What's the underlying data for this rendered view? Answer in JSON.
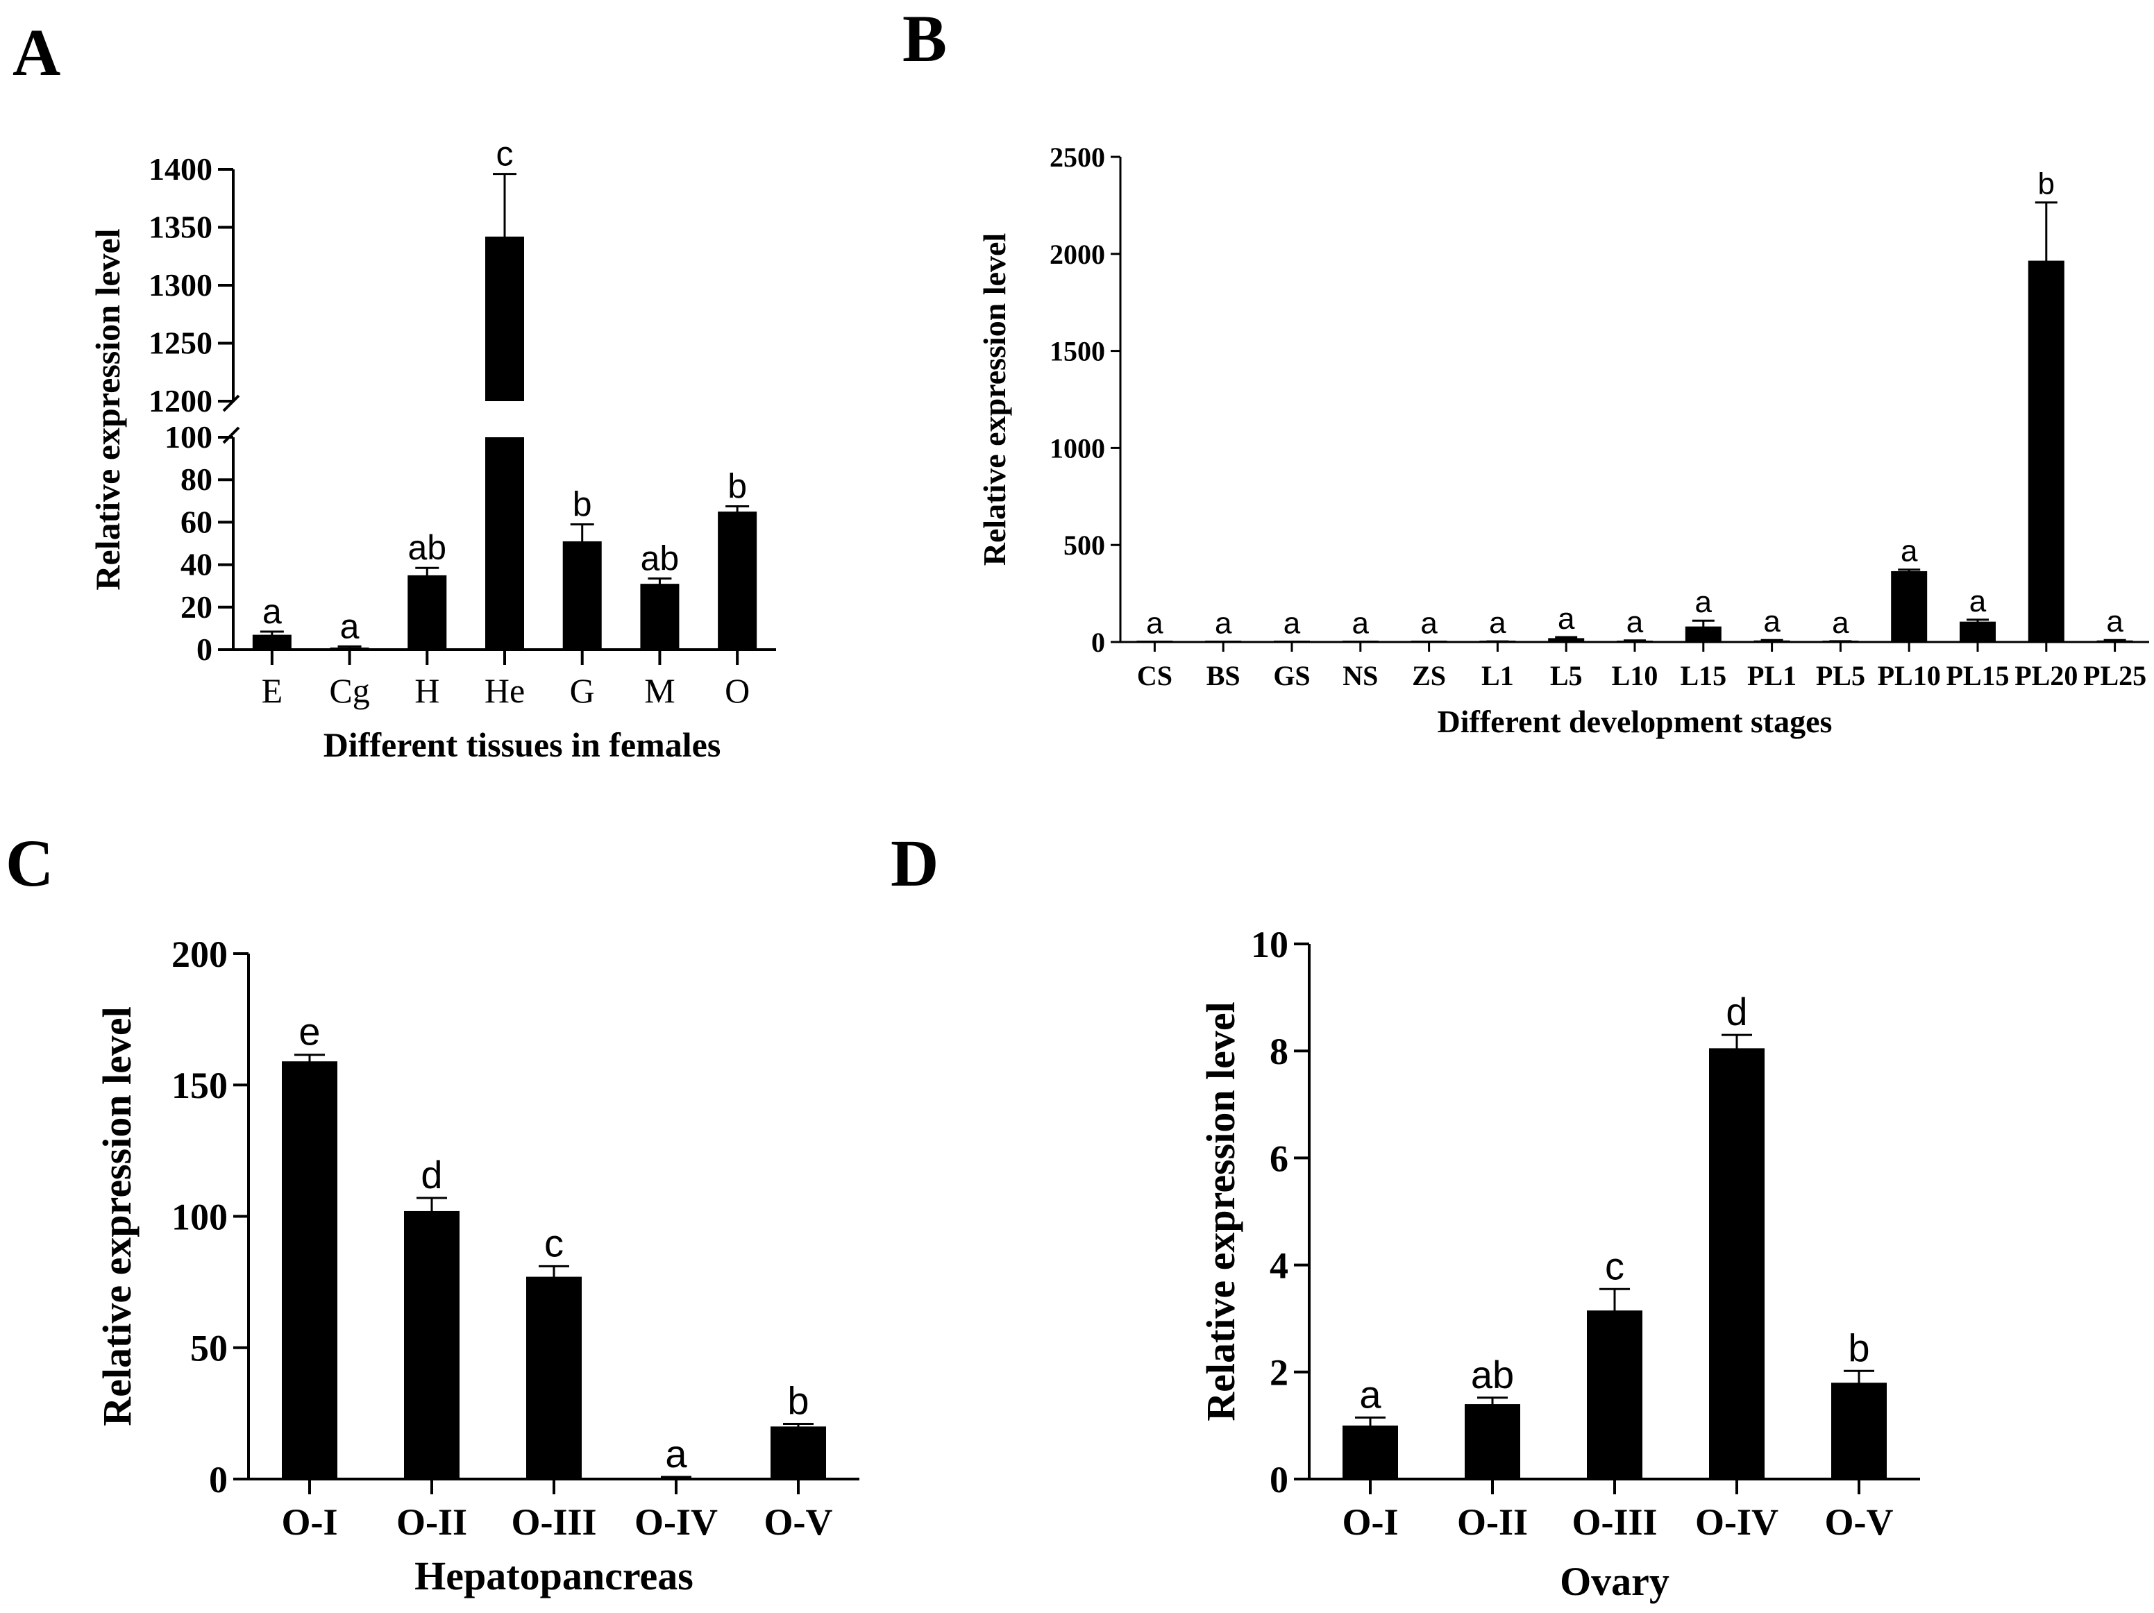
{
  "chart_data": [
    {
      "panel": "A",
      "type": "bar",
      "title": "",
      "xlabel": "Different tissues in females",
      "ylabel": "Relative expression level",
      "categories": [
        "E",
        "Cg",
        "H",
        "He",
        "G",
        "M",
        "O"
      ],
      "values": [
        7,
        1,
        35,
        1342,
        51,
        31,
        65
      ],
      "errors": [
        1.5,
        0.5,
        3.5,
        54,
        8,
        2.5,
        2.5
      ],
      "significance": [
        "a",
        "a",
        "ab",
        "c",
        "b",
        "ab",
        "b"
      ],
      "ylim_lower": [
        0,
        100
      ],
      "ylim_upper": [
        1200,
        1400
      ],
      "yticks_lower": [
        "0",
        "20",
        "40",
        "60",
        "80",
        "100"
      ],
      "yticks_upper": [
        "1200",
        "1250",
        "1300",
        "1350",
        "1400"
      ]
    },
    {
      "panel": "B",
      "type": "bar",
      "title": "",
      "xlabel": "Different development stages",
      "ylabel": "Relative expression level",
      "categories": [
        "CS",
        "BS",
        "GS",
        "NS",
        "ZS",
        "L1",
        "L5",
        "L10",
        "L15",
        "PL1",
        "PL5",
        "PL10",
        "PL15",
        "PL20",
        "PL25"
      ],
      "values": [
        1,
        1,
        1,
        1,
        1,
        2,
        20,
        6,
        80,
        8,
        3,
        365,
        105,
        1965,
        8
      ],
      "errors": [
        0.5,
        0.5,
        0.5,
        0.5,
        0.5,
        1,
        5,
        2,
        30,
        2,
        1,
        8,
        10,
        300,
        2
      ],
      "significance": [
        "a",
        "a",
        "a",
        "a",
        "a",
        "a",
        "a",
        "a",
        "a",
        "a",
        "a",
        "a",
        "a",
        "b",
        "a"
      ],
      "ylim": [
        0,
        2500
      ],
      "yticks": [
        "0",
        "500",
        "1000",
        "1500",
        "2000",
        "2500"
      ]
    },
    {
      "panel": "C",
      "type": "bar",
      "title": "",
      "xlabel": "Hepatopancreas",
      "ylabel": "Relative expression level",
      "categories": [
        "O-I",
        "O-II",
        "O-III",
        "O-IV",
        "O-V"
      ],
      "values": [
        159,
        102,
        77,
        0.5,
        20
      ],
      "errors": [
        2.5,
        5,
        4,
        0.3,
        1
      ],
      "significance": [
        "e",
        "d",
        "c",
        "a",
        "b"
      ],
      "ylim": [
        0,
        200
      ],
      "yticks": [
        "0",
        "50",
        "100",
        "150",
        "200"
      ]
    },
    {
      "panel": "D",
      "type": "bar",
      "title": "",
      "xlabel": "Ovary",
      "ylabel": "Relative expression level",
      "categories": [
        "O-I",
        "O-II",
        "O-III",
        "O-IV",
        "O-V"
      ],
      "values": [
        1.0,
        1.4,
        3.15,
        8.05,
        1.8
      ],
      "errors": [
        0.15,
        0.12,
        0.4,
        0.25,
        0.22
      ],
      "significance": [
        "a",
        "ab",
        "c",
        "d",
        "b"
      ],
      "ylim": [
        0,
        10
      ],
      "yticks": [
        "0",
        "2",
        "4",
        "6",
        "8",
        "10"
      ]
    }
  ],
  "panel_labels": [
    "A",
    "B",
    "C",
    "D"
  ],
  "bar_color": "#000000"
}
